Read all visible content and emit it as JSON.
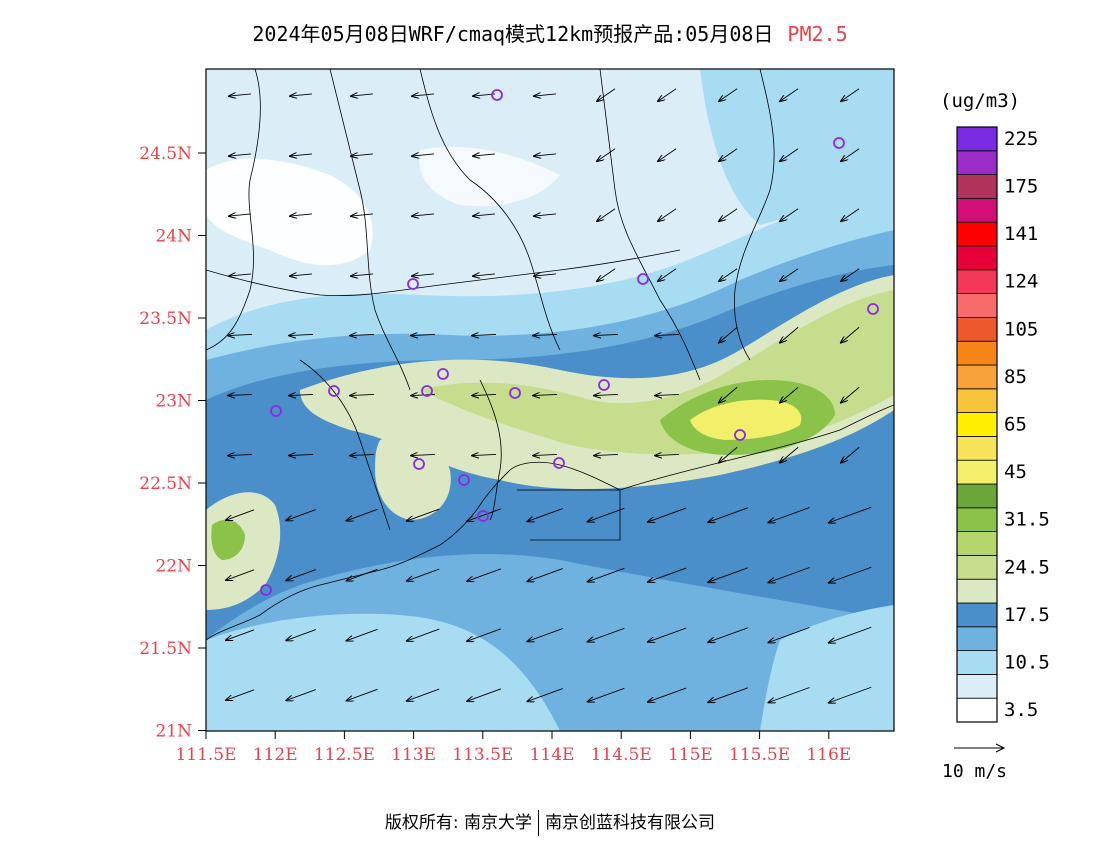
{
  "title": {
    "product": "2024年05月08日WRF/cmaq模式12km预报产品:05月08日",
    "variable": "PM2.5"
  },
  "map": {
    "lat_labels": [
      "24.5N",
      "24N",
      "23.5N",
      "23N",
      "22.5N",
      "22N",
      "21.5N",
      "21N"
    ],
    "lon_labels": [
      "111.5E",
      "112E",
      "112.5E",
      "113E",
      "113.5E",
      "114E",
      "114.5E",
      "115E",
      "115.5E",
      "116E"
    ],
    "label_color": "#e8434a",
    "station_marker_color": "#8a2be2",
    "hotspot": "115.2E 22.85N"
  },
  "legend": {
    "units": "(ug/m3)",
    "colors": [
      "#ffffff",
      "#dbeef8",
      "#a8dcf3",
      "#6fb2e0",
      "#4a8fc9",
      "#dce8c4",
      "#c6dd8d",
      "#b4d66a",
      "#8bc34a",
      "#6aa539",
      "#f2f06a",
      "#f7e35a",
      "#ffee00",
      "#f7c43a",
      "#f7a23a",
      "#f58516",
      "#ec5a2c",
      "#f86b6b",
      "#f4385a",
      "#e8003a",
      "#ff0000",
      "#d40e78",
      "#b0335c",
      "#9b2cc8",
      "#7a2ce0"
    ],
    "labels": [
      "3.5",
      "10.5",
      "17.5",
      "24.5",
      "31.5",
      "45",
      "65",
      "85",
      "105",
      "124",
      "141",
      "175",
      "225"
    ]
  },
  "wind_reference": {
    "label": "10 m/s"
  },
  "copyright": {
    "left": "版权所有: 南京大学",
    "right": "南京创蓝科技有限公司"
  }
}
